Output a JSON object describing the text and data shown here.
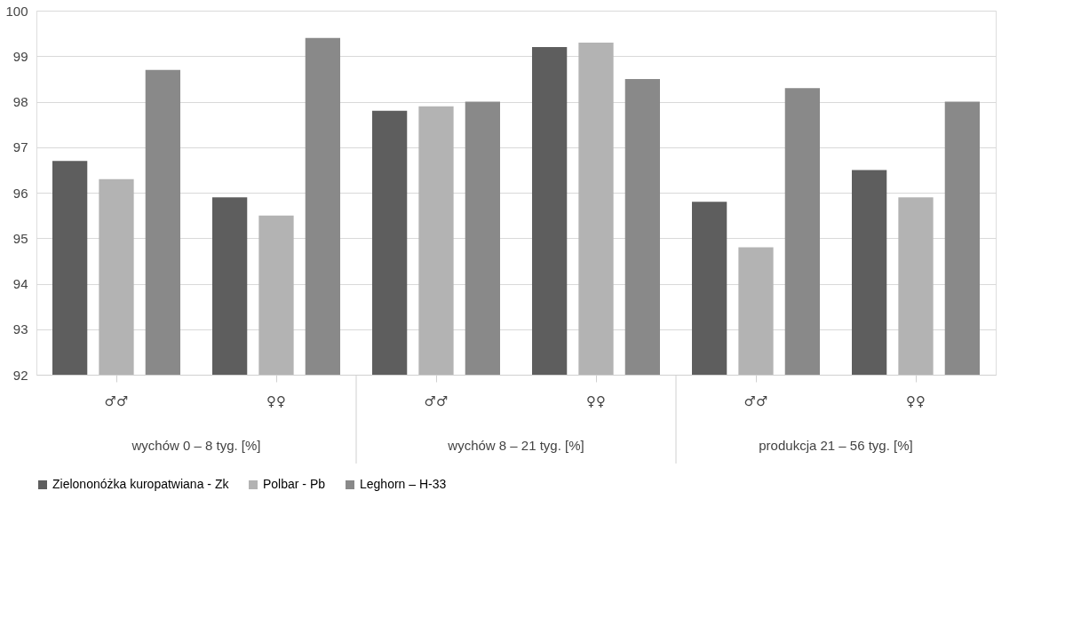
{
  "chart_data": {
    "type": "bar",
    "categories": [
      "♂♂",
      "♀♀",
      "♂♂",
      "♀♀",
      "♂♂",
      "♀♀"
    ],
    "annotations": [
      "wychów 0 – 8 tyg. [%]",
      "wychów 8 – 21 tyg. [%]",
      "produkcja 21 – 56 tyg. [%]"
    ],
    "series": [
      {
        "name": "Zielononóżka kuropatwiana - Zk",
        "color": "#5e5e5e",
        "values": [
          96.7,
          95.9,
          97.8,
          99.2,
          95.8,
          96.5
        ]
      },
      {
        "name": "Polbar - Pb",
        "color": "#b3b3b3",
        "values": [
          96.3,
          95.5,
          97.9,
          99.3,
          94.8,
          95.9
        ]
      },
      {
        "name": "Leghorn – H-33",
        "color": "#898989",
        "values": [
          98.7,
          99.4,
          98.0,
          98.5,
          98.3,
          98.0
        ]
      }
    ],
    "ylim": [
      92,
      100
    ],
    "yticks": [
      92,
      93,
      94,
      95,
      96,
      97,
      98,
      99,
      100
    ],
    "grid": "y",
    "legend": "bottom"
  }
}
